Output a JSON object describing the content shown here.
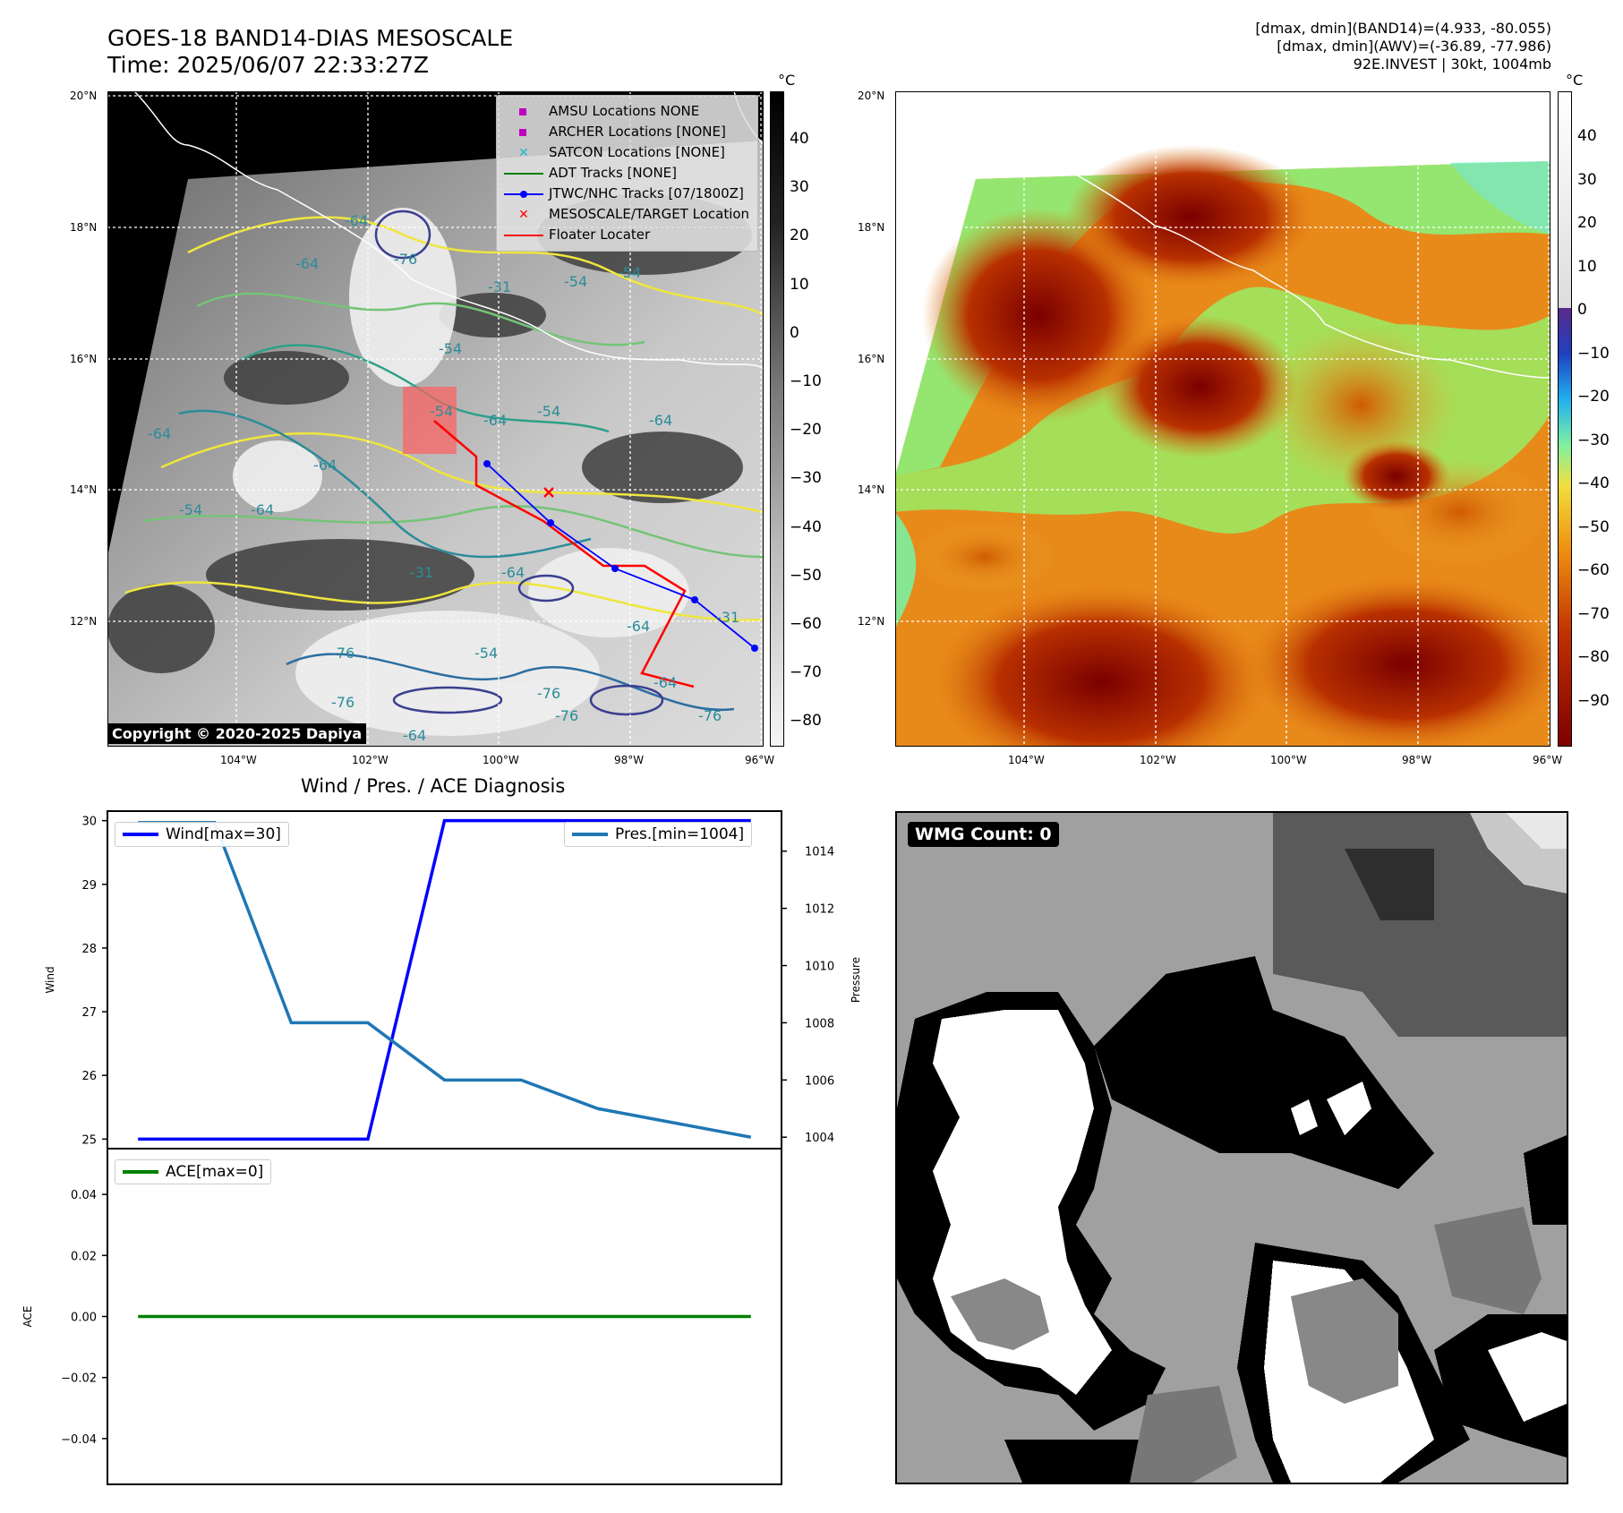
{
  "header": {
    "title_line1": "GOES-18 BAND14-DIAS MESOSCALE",
    "title_line2": "Time: 2025/06/07 22:33:27Z",
    "info_line1": "[dmax, dmin](BAND14)=(4.933, -80.055)",
    "info_line2": "[dmax, dmin](AWV)=(-36.89, -77.986)",
    "info_line3": "92E.INVEST | 30kt, 1004mb"
  },
  "map_left": {
    "lat_labels": [
      "20°N",
      "18°N",
      "16°N",
      "14°N",
      "12°N"
    ],
    "lon_labels": [
      "104°W",
      "102°W",
      "100°W",
      "98°W",
      "96°W"
    ],
    "contour_labels": [
      "-64",
      "-76",
      "-64",
      "-54",
      "-54",
      "-31",
      "-64",
      "-54",
      "-64",
      "-64",
      "-31",
      "-64",
      "-64",
      "-76",
      "-64",
      "-54",
      "-76",
      "-64",
      "-31",
      "-54",
      "-64",
      "-76",
      "-76",
      "-76",
      "-54",
      "-64",
      "-54"
    ],
    "copyright": "Copyright © 2020-2025 Dapiya",
    "colorbar_unit": "°C",
    "colorbar_ticks": [
      "40",
      "30",
      "20",
      "10",
      "0",
      "−10",
      "−20",
      "−30",
      "−40",
      "−50",
      "−60",
      "−70",
      "−80"
    ],
    "legend": [
      {
        "label": "AMSU Locations NONE",
        "icon": "square-marker",
        "color": "#c000c0"
      },
      {
        "label": "ARCHER Locations [NONE]",
        "icon": "square-marker",
        "color": "#c000c0"
      },
      {
        "label": "SATCON Locations [NONE]",
        "icon": "x-marker",
        "color": "#17becf"
      },
      {
        "label": "ADT Tracks [NONE]",
        "icon": "line",
        "color": "#008000"
      },
      {
        "label": "JTWC/NHC Tracks [07/1800Z]",
        "icon": "line-dot",
        "color": "#0000ff"
      },
      {
        "label": "MESOSCALE/TARGET Location",
        "icon": "x-marker",
        "color": "#ff0000"
      },
      {
        "label": "Floater Locater",
        "icon": "line",
        "color": "#ff0000"
      }
    ]
  },
  "map_right": {
    "lat_labels": [
      "20°N",
      "18°N",
      "16°N",
      "14°N",
      "12°N"
    ],
    "lon_labels": [
      "104°W",
      "102°W",
      "100°W",
      "98°W",
      "96°W"
    ],
    "colorbar_unit": "°C",
    "colorbar_ticks": [
      "40",
      "30",
      "20",
      "10",
      "0",
      "−10",
      "−20",
      "−30",
      "−40",
      "−50",
      "−60",
      "−70",
      "−80",
      "−90"
    ]
  },
  "diagnosis": {
    "title": "Wind / Pres. / ACE Diagnosis",
    "wind_ylabel": "Wind",
    "pressure_ylabel": "Pressure",
    "ace_ylabel": "ACE",
    "wind_legend": "Wind[max=30]",
    "pressure_legend": "Pres.[min=1004]",
    "ace_legend": "ACE[max=0]",
    "colors": {
      "wind": "#0000ff",
      "pressure": "#1f77b4",
      "ace": "#008000"
    }
  },
  "wmg": {
    "count_label": "WMG Count: 0"
  },
  "chart_data": [
    {
      "type": "line",
      "title": "Wind / Pres. / ACE Diagnosis",
      "x": [
        0,
        1,
        2,
        3,
        4,
        5,
        6,
        7,
        8
      ],
      "series": [
        {
          "name": "Wind[max=30]",
          "axis": "left",
          "values": [
            25,
            25,
            25,
            25,
            30,
            30,
            30,
            30,
            30
          ]
        },
        {
          "name": "Pres.[min=1004]",
          "axis": "right",
          "values": [
            1015,
            1015,
            1008,
            1008,
            1006,
            1006,
            1005,
            1004.5,
            1004
          ]
        }
      ],
      "ylabel": "Wind",
      "ylim": [
        24.85,
        30.15
      ],
      "yticks": [
        "25",
        "26",
        "27",
        "28",
        "29",
        "30"
      ],
      "y2label": "Pressure",
      "y2lim": [
        1003.6,
        1015.4
      ],
      "y2ticks": [
        "1004",
        "1006",
        "1008",
        "1010",
        "1012",
        "1014"
      ],
      "legend": [
        "upper-left",
        "upper-right"
      ]
    },
    {
      "type": "line",
      "x": [
        0,
        8
      ],
      "series": [
        {
          "name": "ACE[max=0]",
          "values": [
            0,
            0
          ]
        }
      ],
      "ylabel": "ACE",
      "ylim": [
        -0.055,
        0.055
      ],
      "yticks": [
        "0.04",
        "0.02",
        "0.00",
        "−0.02",
        "−0.04"
      ],
      "legend": "upper-left"
    }
  ]
}
